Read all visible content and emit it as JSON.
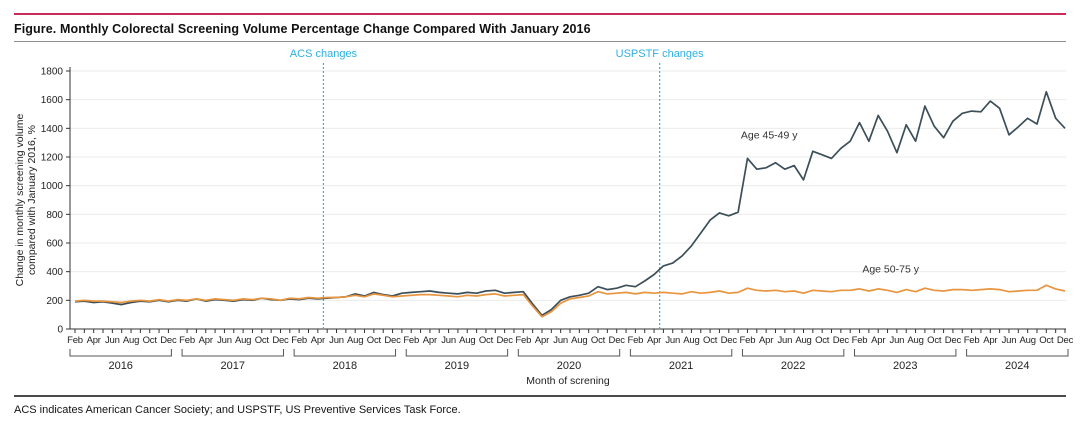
{
  "page": {
    "title": "Figure. Monthly Colorectal Screening Volume Percentage Change Compared With January 2016",
    "footnote": "ACS indicates American Cancer Society; and USPSTF, US Preventive Services Task Force.",
    "accent_color": "#cb2b5b"
  },
  "chart_data": {
    "type": "line",
    "title": "Monthly Colorectal Screening Volume Percentage Change Compared With January 2016",
    "xlabel": "Month of screning",
    "ylabel_line1": "Change in monthly screening volume",
    "ylabel_line2": "compared with January 2016, %",
    "ylim": [
      0,
      1800
    ],
    "y_ticks": [
      0,
      200,
      400,
      600,
      800,
      1000,
      1200,
      1400,
      1600,
      1800
    ],
    "grid": "horizontal",
    "x_start": "2016-02",
    "x_end": "2024-12",
    "x_month_tick_labels": [
      "Feb",
      "Apr",
      "Jun",
      "Aug",
      "Oct",
      "Dec"
    ],
    "years": [
      2016,
      2017,
      2018,
      2019,
      2020,
      2021,
      2022,
      2023,
      2024
    ],
    "series": [
      {
        "name": "Age 45-49 y",
        "color": "#3c4f58",
        "label_pos": {
          "month_index": 71.3,
          "value": 1330
        },
        "values": [
          190,
          195,
          185,
          190,
          180,
          170,
          185,
          195,
          190,
          200,
          190,
          200,
          195,
          210,
          195,
          205,
          200,
          195,
          205,
          200,
          215,
          205,
          200,
          210,
          205,
          215,
          210,
          215,
          220,
          225,
          245,
          230,
          255,
          240,
          230,
          250,
          255,
          260,
          265,
          255,
          250,
          245,
          255,
          250,
          265,
          270,
          250,
          255,
          260,
          175,
          95,
          135,
          200,
          225,
          235,
          250,
          295,
          275,
          285,
          305,
          295,
          335,
          380,
          440,
          460,
          510,
          580,
          670,
          760,
          810,
          790,
          815,
          1190,
          1115,
          1125,
          1160,
          1115,
          1140,
          1040,
          1240,
          1215,
          1190,
          1260,
          1310,
          1440,
          1310,
          1490,
          1380,
          1230,
          1425,
          1310,
          1555,
          1415,
          1335,
          1450,
          1505,
          1520,
          1515,
          1590,
          1540,
          1355,
          1410,
          1470,
          1430,
          1655,
          1470,
          1400
        ]
      },
      {
        "name": "Age 50-75 y",
        "color": "#e8953f",
        "label_pos": {
          "month_index": 84.3,
          "value": 395
        },
        "values": [
          195,
          200,
          195,
          195,
          190,
          185,
          195,
          200,
          195,
          205,
          195,
          205,
          200,
          210,
          200,
          210,
          205,
          200,
          210,
          205,
          215,
          210,
          200,
          215,
          210,
          220,
          215,
          220,
          220,
          225,
          235,
          225,
          245,
          235,
          225,
          230,
          235,
          240,
          240,
          235,
          230,
          225,
          235,
          230,
          240,
          245,
          230,
          235,
          240,
          160,
          85,
          120,
          180,
          210,
          220,
          230,
          260,
          245,
          250,
          255,
          245,
          255,
          250,
          255,
          250,
          245,
          260,
          250,
          255,
          265,
          250,
          255,
          285,
          270,
          265,
          270,
          260,
          265,
          250,
          270,
          265,
          260,
          270,
          270,
          280,
          265,
          280,
          270,
          255,
          275,
          260,
          285,
          270,
          265,
          275,
          275,
          270,
          275,
          280,
          275,
          260,
          265,
          270,
          270,
          305,
          280,
          265
        ]
      }
    ],
    "annotations": [
      {
        "label": "ACS changes",
        "at": "2018-05",
        "month_index": 26.6,
        "color": "#2fb0e0"
      },
      {
        "label": "USPSTF changes",
        "at": "2021-05",
        "month_index": 62.6,
        "color": "#2fb0e0"
      }
    ]
  }
}
